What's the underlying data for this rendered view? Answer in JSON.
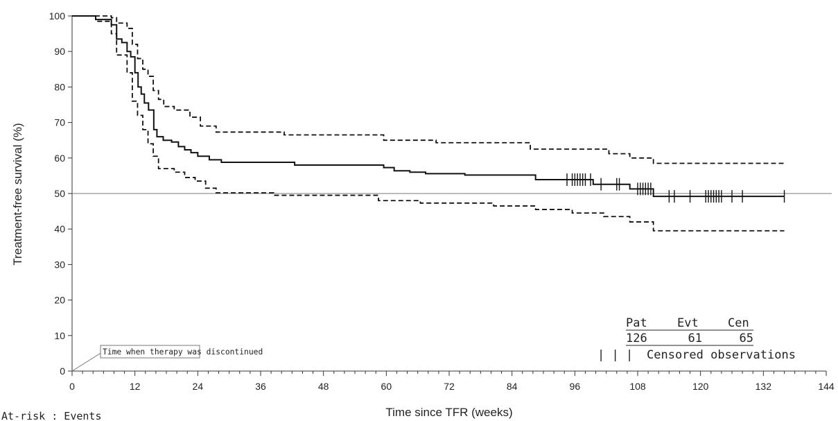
{
  "chart_data": {
    "type": "line",
    "xlabel": "Time since TFR (weeks)",
    "ylabel": "Treatment-free survival (%)",
    "xlim": [
      0,
      144
    ],
    "ylim": [
      0,
      100
    ],
    "x_ticks": [
      0,
      12,
      24,
      36,
      48,
      60,
      72,
      84,
      96,
      108,
      120,
      132,
      144
    ],
    "y_ticks": [
      0,
      10,
      20,
      30,
      40,
      50,
      60,
      70,
      80,
      90,
      100
    ],
    "reference_line_y": 50,
    "grid": false,
    "series": [
      {
        "role": "estimate",
        "style": "solid-step",
        "x": [
          0,
          4.5,
          7.5,
          8.5,
          9.5,
          10.5,
          11.2,
          12,
          12.6,
          13.2,
          13.8,
          14.6,
          15.6,
          16.2,
          17.4,
          19,
          20.3,
          21.5,
          22.7,
          24,
          26.2,
          28.5,
          42.5,
          59.5,
          61.5,
          64.5,
          67.5,
          75,
          88.5,
          99.5,
          106.5,
          111,
          136
        ],
        "y": [
          100,
          99,
          97.5,
          93.5,
          92.5,
          90,
          88.5,
          84,
          80,
          78,
          75.5,
          73.5,
          68,
          66,
          65,
          64.5,
          63.2,
          62.3,
          61.5,
          60.5,
          59.5,
          58.8,
          58,
          57.3,
          56.4,
          56,
          55.6,
          55.2,
          53.9,
          52.6,
          51.3,
          49.2,
          49.2
        ]
      },
      {
        "role": "upper-ci",
        "style": "dashed-step",
        "x": [
          0,
          7.5,
          8.5,
          10.5,
          11.5,
          12.5,
          13.5,
          14.5,
          15.5,
          16.5,
          17.5,
          19.5,
          22.5,
          24.5,
          27.5,
          40.5,
          59.5,
          69.5,
          87.5,
          102.5,
          106.5,
          111,
          136
        ],
        "y": [
          100,
          99.5,
          98,
          96.5,
          92,
          88,
          85,
          83,
          79,
          76.5,
          74.5,
          73.5,
          71.5,
          69,
          67.3,
          66.5,
          65,
          64.3,
          62.5,
          61.2,
          60,
          58.5,
          58.5
        ]
      },
      {
        "role": "lower-ci",
        "style": "dashed-step",
        "x": [
          0,
          4.5,
          7.5,
          8.5,
          10.5,
          11.5,
          12.5,
          13.5,
          14.5,
          15.5,
          16.5,
          19.5,
          21.5,
          23.5,
          25.5,
          27.5,
          38.5,
          58.5,
          66.5,
          80.5,
          88.5,
          95.5,
          101.5,
          106.5,
          111,
          136
        ],
        "y": [
          100,
          98.5,
          95,
          89,
          84,
          76,
          72,
          68,
          64,
          60.5,
          57,
          56,
          54.5,
          53.5,
          51.5,
          50.2,
          49.5,
          48,
          47.3,
          46.5,
          45.5,
          44.5,
          43.5,
          42,
          39.5,
          39.5
        ]
      }
    ],
    "censor_marks": {
      "x": [
        94.5,
        95.5,
        96,
        96.5,
        97,
        97.5,
        98,
        99,
        101,
        104,
        104.5,
        108,
        108.5,
        109,
        109.5,
        110,
        110.5,
        114,
        115,
        118,
        121,
        121.5,
        122,
        122.5,
        123,
        123.5,
        124,
        126,
        128,
        136
      ],
      "y": [
        53.9,
        53.9,
        53.9,
        53.9,
        53.9,
        53.9,
        53.9,
        53.9,
        52.6,
        52.6,
        52.6,
        51.3,
        51.3,
        51.3,
        51.3,
        51.3,
        51.3,
        49.2,
        49.2,
        49.2,
        49.2,
        49.2,
        49.2,
        49.2,
        49.2,
        49.2,
        49.2,
        49.2,
        49.2,
        49.2
      ]
    },
    "annotation": {
      "text": "Time when therapy was discontinued",
      "points_to": [
        0,
        0
      ]
    },
    "summary_table": {
      "headers": [
        "Pat",
        "Evt",
        "Cen"
      ],
      "values": [
        "126",
        "61",
        "65"
      ]
    },
    "legend": {
      "symbol": "| | |",
      "text": "Censored observations",
      "position": "bottom-right"
    },
    "footer_text": "At-risk : Events"
  }
}
